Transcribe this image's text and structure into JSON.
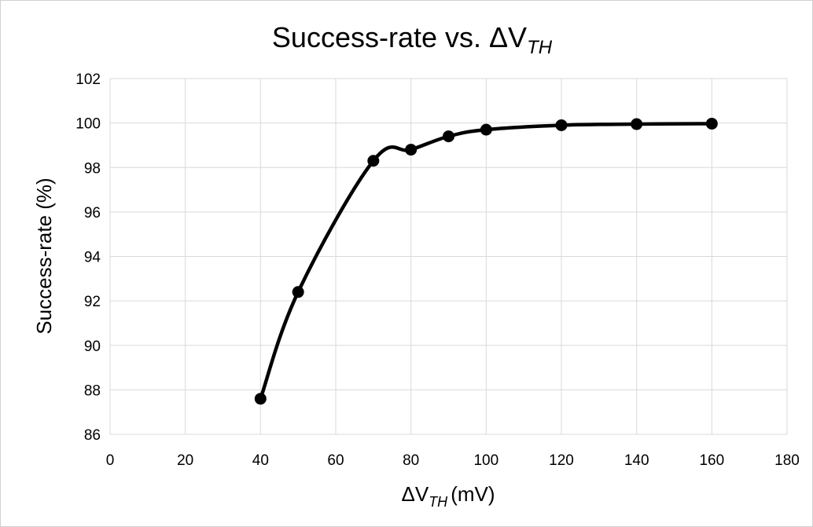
{
  "chart_data": {
    "type": "line",
    "title": "Success-rate vs. ΔV",
    "title_subscript": "TH",
    "xlabel": "ΔV",
    "xlabel_subscript": "TH",
    "xlabel_unit": "(mV)",
    "ylabel": "Success-rate (%)",
    "xlim": [
      0,
      180
    ],
    "ylim": [
      86,
      102
    ],
    "xticks": [
      0,
      20,
      40,
      60,
      80,
      100,
      120,
      140,
      160,
      180
    ],
    "yticks": [
      86,
      88,
      90,
      92,
      94,
      96,
      98,
      100,
      102
    ],
    "grid": true,
    "smooth": true,
    "series": [
      {
        "x": [
          40,
          50,
          70,
          80,
          90,
          100,
          120,
          140,
          160
        ],
        "y": [
          87.6,
          92.4,
          98.3,
          98.8,
          99.4,
          99.7,
          99.9,
          99.95,
          99.97
        ],
        "color": "#000000"
      }
    ]
  }
}
